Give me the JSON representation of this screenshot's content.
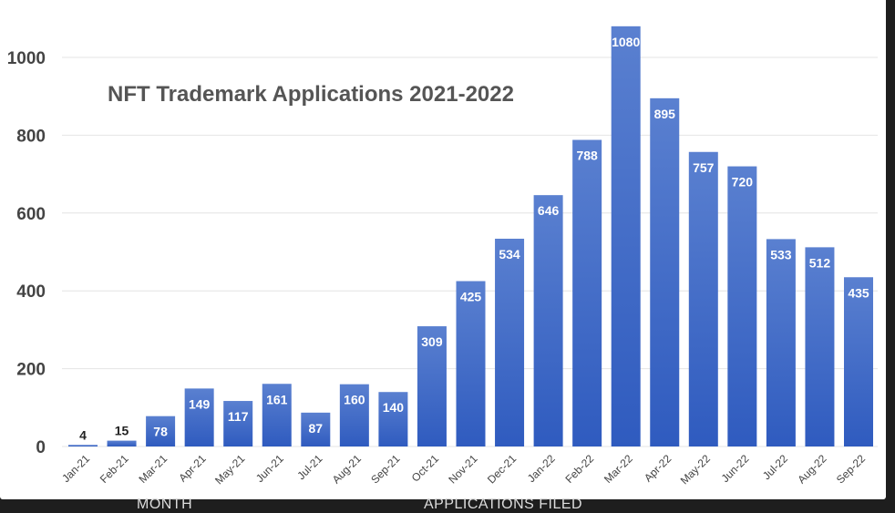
{
  "chart_data": {
    "type": "bar",
    "title": "NFT Trademark Applications 2021-2022",
    "categories": [
      "Jan-21",
      "Feb-21",
      "Mar-21",
      "Apr-21",
      "May-21",
      "Jun-21",
      "Jul-21",
      "Aug-21",
      "Sep-21",
      "Oct-21",
      "Nov-21",
      "Dec-21",
      "Jan-22",
      "Feb-22",
      "Mar-22",
      "Apr-22",
      "May-22",
      "Jun-22",
      "Jul-22",
      "Aug-22",
      "Sep-22"
    ],
    "values": [
      4,
      15,
      78,
      149,
      117,
      161,
      87,
      160,
      140,
      309,
      425,
      534,
      646,
      788,
      1080,
      895,
      757,
      720,
      533,
      512,
      435
    ],
    "ylim": [
      0,
      1000
    ],
    "yticks": [
      0,
      200,
      400,
      600,
      800,
      1000
    ],
    "grid": true,
    "xlabel": "",
    "ylabel": "",
    "bar_color": "#3b66c4"
  },
  "footer": {
    "left": "MONTH",
    "center": "APPLICATIONS FILED"
  }
}
